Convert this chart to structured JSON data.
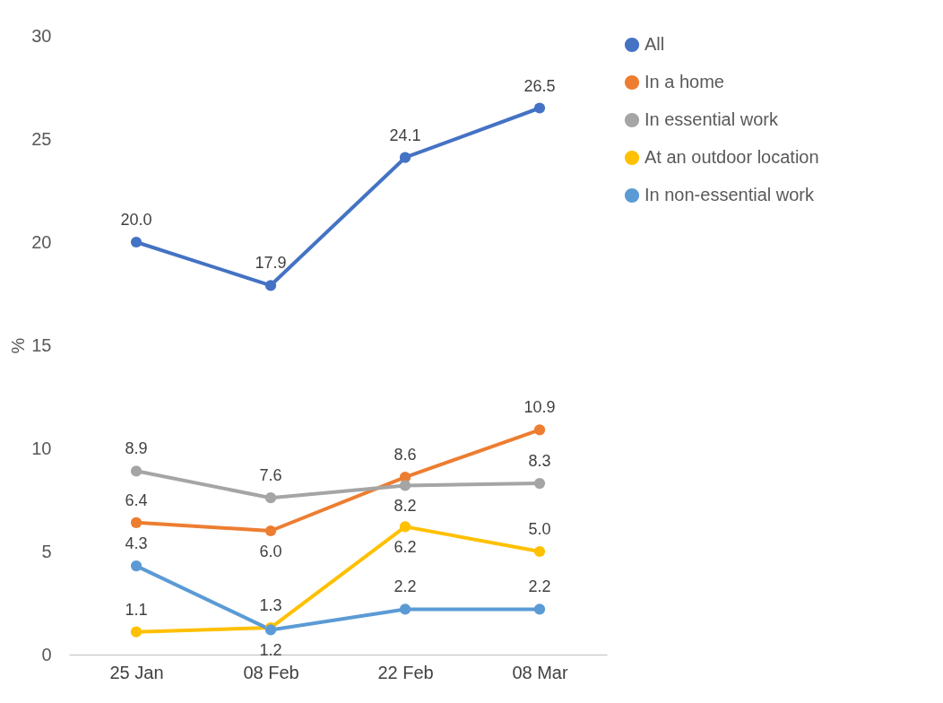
{
  "chart_data": {
    "type": "line",
    "ylabel": "%",
    "categories": [
      "25 Jan",
      "08 Feb",
      "22 Feb",
      "08 Mar"
    ],
    "series": [
      {
        "name": "All",
        "color": "#4472c4",
        "values": [
          20.0,
          17.9,
          24.1,
          26.5
        ],
        "value_labels": [
          "20.0",
          "17.9",
          "24.1",
          "26.5"
        ]
      },
      {
        "name": "In a home",
        "color": "#ed7d31",
        "values": [
          6.4,
          6.0,
          8.6,
          10.9
        ],
        "value_labels": [
          "6.4",
          "6.0",
          "8.6",
          "10.9"
        ]
      },
      {
        "name": "In essential work",
        "color": "#a5a5a5",
        "values": [
          8.9,
          7.6,
          8.2,
          8.3
        ],
        "value_labels": [
          "8.9",
          "7.6",
          "8.2",
          "8.3"
        ]
      },
      {
        "name": "At an outdoor location",
        "color": "#ffc000",
        "values": [
          1.1,
          1.3,
          6.2,
          5.0
        ],
        "value_labels": [
          "1.1",
          "1.3",
          "6.2",
          "5.0"
        ]
      },
      {
        "name": "In non-essential work",
        "color": "#5b9bd5",
        "values": [
          4.3,
          1.2,
          2.2,
          2.2
        ],
        "value_labels": [
          "4.3",
          "1.2",
          "2.2",
          "2.2"
        ]
      }
    ],
    "ylim": [
      0,
      30
    ],
    "yticks": [
      0,
      5,
      10,
      15,
      20,
      25,
      30
    ],
    "legend": "right",
    "marker": "circle",
    "line_style": "solid"
  }
}
